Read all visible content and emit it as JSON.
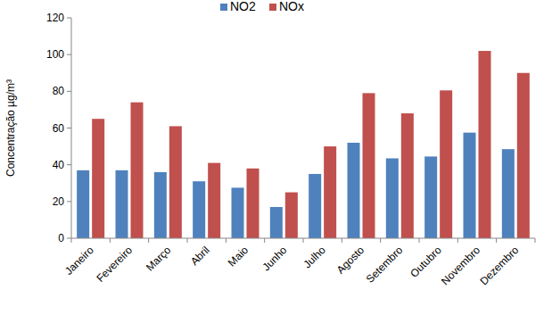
{
  "chart_data": {
    "type": "bar",
    "y_label": "Concentração µg/m³",
    "categories": [
      "Janeiro",
      "Fevereiro",
      "Março",
      "Abril",
      "Maio",
      "Junho",
      "Julho",
      "Agosto",
      "Setembro",
      "Outubro",
      "Novembro",
      "Dezembro"
    ],
    "series": [
      {
        "name": "NO2",
        "color": "#4f81bd",
        "values": [
          37,
          37,
          36,
          31,
          27.5,
          17,
          35,
          52,
          43.5,
          44.5,
          57.5,
          48.5
        ]
      },
      {
        "name": "NOx",
        "color": "#c0504d",
        "values": [
          65,
          74,
          61,
          41,
          38,
          25,
          50,
          79,
          68,
          80.5,
          102,
          90
        ]
      }
    ],
    "ylim": [
      0,
      120
    ],
    "yticks": [
      0,
      20,
      40,
      60,
      80,
      100,
      120
    ],
    "grid": false,
    "legend": "top"
  }
}
